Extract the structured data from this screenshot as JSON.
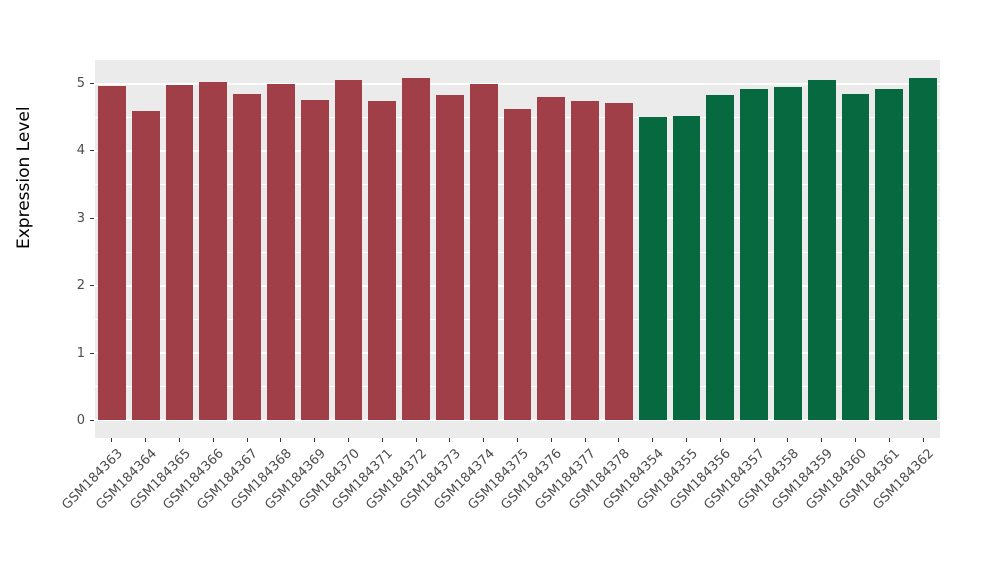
{
  "chart_data": {
    "type": "bar",
    "title": "",
    "xlabel": "",
    "ylabel": "Expression Level",
    "categories": [
      "GSM184363",
      "GSM184364",
      "GSM184365",
      "GSM184366",
      "GSM184367",
      "GSM184368",
      "GSM184369",
      "GSM184370",
      "GSM184371",
      "GSM184372",
      "GSM184373",
      "GSM184374",
      "GSM184375",
      "GSM184376",
      "GSM184377",
      "GSM184378",
      "GSM184354",
      "GSM184355",
      "GSM184356",
      "GSM184357",
      "GSM184358",
      "GSM184359",
      "GSM184360",
      "GSM184361",
      "GSM184362"
    ],
    "values": [
      4.96,
      4.6,
      4.98,
      5.03,
      4.85,
      4.99,
      4.76,
      5.05,
      4.74,
      5.09,
      4.83,
      4.99,
      4.63,
      4.8,
      4.74,
      4.71,
      4.5,
      4.52,
      4.83,
      4.92,
      4.95,
      5.06,
      4.85,
      4.92,
      5.08
    ],
    "groups": [
      "red",
      "red",
      "red",
      "red",
      "red",
      "red",
      "red",
      "red",
      "red",
      "red",
      "red",
      "red",
      "red",
      "red",
      "red",
      "red",
      "green",
      "green",
      "green",
      "green",
      "green",
      "green",
      "green",
      "green",
      "green"
    ],
    "group_colors": {
      "red": "#A13F49",
      "green": "#07693F"
    },
    "yticks": [
      0,
      1,
      2,
      3,
      4,
      5
    ],
    "ylim": [
      0,
      5.35
    ],
    "grid": "on",
    "legend": "none",
    "panel_background": "#EBEBEB",
    "grid_color": "#FFFFFF",
    "axis_text_color": "#4D4D4D"
  }
}
